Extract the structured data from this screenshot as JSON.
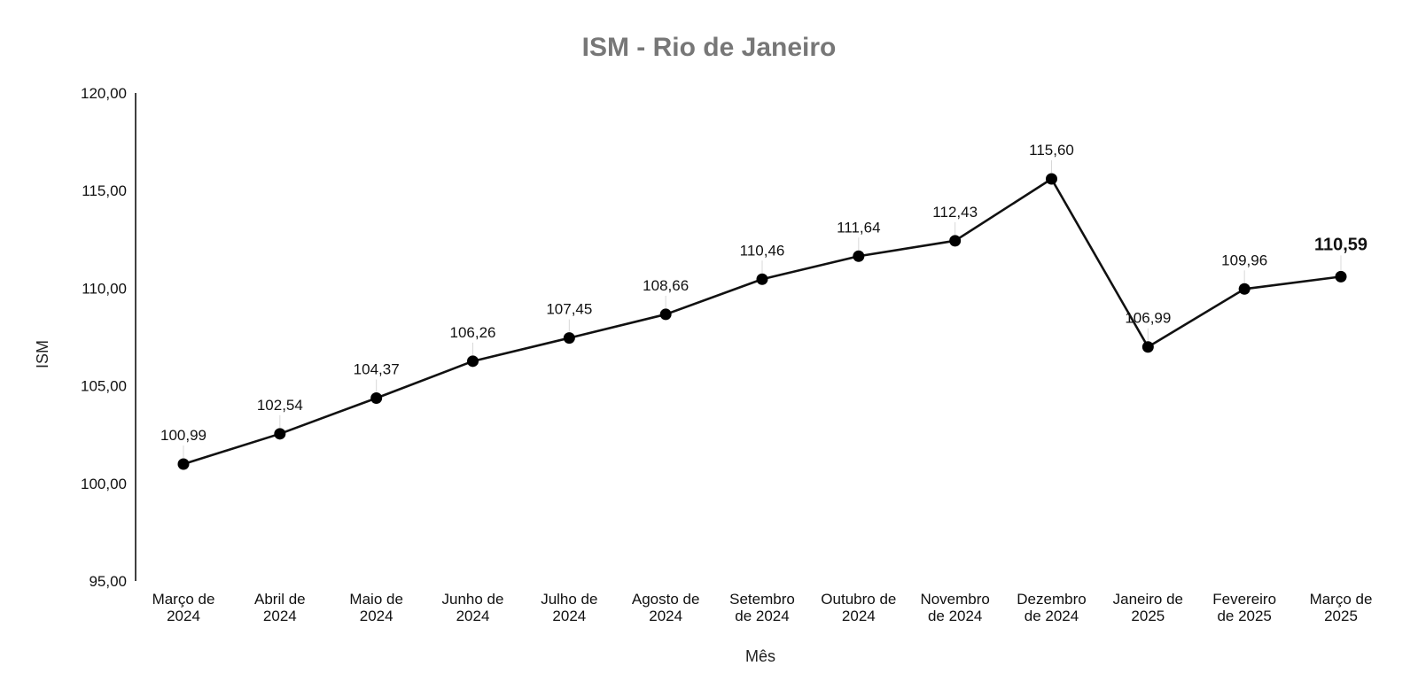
{
  "chart_data": {
    "type": "line",
    "title": "ISM - Rio de Janeiro",
    "xlabel": "Mês",
    "ylabel": "ISM",
    "ylim": [
      95,
      120
    ],
    "y_ticks": [
      "95,00",
      "100,00",
      "105,00",
      "110,00",
      "115,00",
      "120,00"
    ],
    "y_tick_values": [
      95,
      100,
      105,
      110,
      115,
      120
    ],
    "grid": false,
    "categories": [
      [
        "Março de",
        "2024"
      ],
      [
        "Abril de",
        "2024"
      ],
      [
        "Maio de",
        "2024"
      ],
      [
        "Junho de",
        "2024"
      ],
      [
        "Julho de",
        "2024"
      ],
      [
        "Agosto de",
        "2024"
      ],
      [
        "Setembro",
        "de 2024"
      ],
      [
        "Outubro de",
        "2024"
      ],
      [
        "Novembro",
        "de 2024"
      ],
      [
        "Dezembro",
        "de 2024"
      ],
      [
        "Janeiro de",
        "2025"
      ],
      [
        "Fevereiro",
        "de 2025"
      ],
      [
        "Março de",
        "2025"
      ]
    ],
    "series": [
      {
        "color": "#111111",
        "values": [
          100.99,
          102.54,
          104.37,
          106.26,
          107.45,
          108.66,
          110.46,
          111.64,
          112.43,
          115.6,
          106.99,
          109.96,
          110.59
        ],
        "labels": [
          "100,99",
          "102,54",
          "104,37",
          "106,26",
          "107,45",
          "108,66",
          "110,46",
          "111,64",
          "112,43",
          "115,60",
          "106,99",
          "109,96",
          "110,59"
        ],
        "emphasized_label_index": 12
      }
    ]
  }
}
